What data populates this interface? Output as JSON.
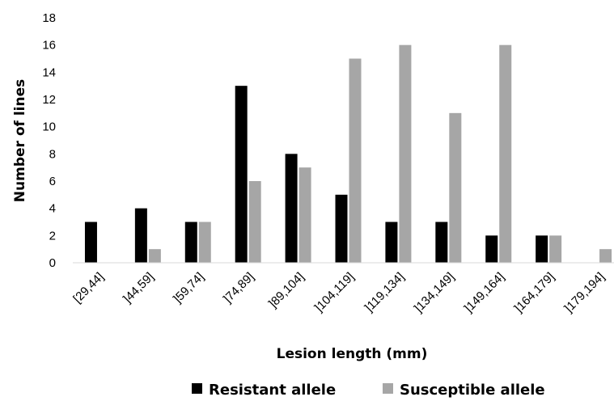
{
  "chart_data": {
    "type": "bar",
    "title": "",
    "xlabel": "Lesion length (mm)",
    "ylabel": "Number of lines",
    "ylim": [
      0,
      18
    ],
    "yticks": [
      0,
      2,
      4,
      6,
      8,
      10,
      12,
      14,
      16,
      18
    ],
    "grid": false,
    "legend_position": "bottom",
    "categories": [
      "[29,44]",
      "]44,59]",
      "]59,74]",
      "]74,89]",
      "]89,104]",
      "]104,119]",
      "]119,134]",
      "]134,149]",
      "]149,164]",
      "]164,179]",
      "]179,194]"
    ],
    "series": [
      {
        "name": "Resistant allele",
        "color": "#000000",
        "values": [
          3,
          4,
          3,
          13,
          8,
          5,
          3,
          3,
          2,
          2,
          0
        ]
      },
      {
        "name": "Susceptible allele",
        "color": "#a6a6a6",
        "values": [
          0,
          1,
          3,
          6,
          7,
          15,
          16,
          11,
          16,
          2,
          1
        ]
      }
    ]
  }
}
